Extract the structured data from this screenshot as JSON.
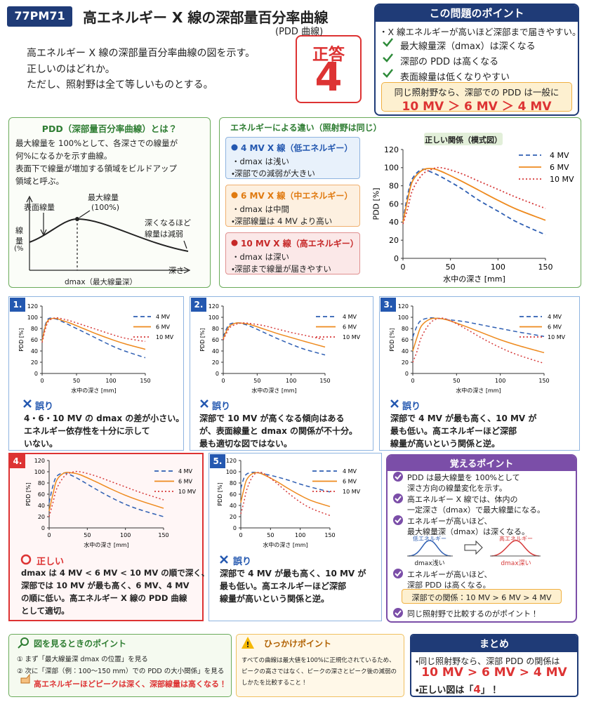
{
  "header": {
    "code": "77PM71",
    "title": "高エネルギー X 線の深部量百分率曲線",
    "subtitle": "(PDD 曲線)"
  },
  "question": [
    "高エネルギー X 線の深部量百分率曲線の図を示す。",
    "正しいのはどれか。",
    "ただし、照射野は全て等しいものとする。"
  ],
  "answer": {
    "label": "正答",
    "value": "4"
  },
  "point": {
    "title": "この問題のポイント",
    "lead": "・X 線エネルギーが高いほど深部まで届きやすい。",
    "items": [
      "最大線量深（dmax）は深くなる",
      "深部の PDD は高くなる",
      "表面線量は低くなりやすい"
    ],
    "note": "同じ照射野なら、深部での PDD は一般に",
    "relation": "10 MV ＞ 6 MV ＞ 4 MV"
  },
  "pdd": {
    "title": "PDD（深部量百分率曲線）とは？",
    "text": [
      "最大線量を 100%として、各深さでの線量が",
      "何%になるかを示す曲線。",
      "表面下で線量が増加する領域をビルドアップ",
      "領域と呼ぶ。"
    ],
    "diagram": {
      "surface": "表面線量",
      "max": "最大線量",
      "max_pct": "(100%)",
      "decay": [
        "深くなるほど",
        "線量は減弱"
      ],
      "ylabel": [
        "線",
        "量",
        "(%"
      ],
      "xlabel": "深さ",
      "dmax": "dmax（最大線量深）"
    }
  },
  "energy": {
    "title": "エネルギーによる違い（照射野は同じ）",
    "groups": [
      {
        "heading": "4 MV X 線（低エネルギー）",
        "items": [
          "・dmax は浅い",
          "・深部での減弱が大きい"
        ]
      },
      {
        "heading": "6 MV X 線（中エネルギー）",
        "items": [
          "・dmax は中間",
          "・深部線量は 4 MV より高い"
        ]
      },
      {
        "heading": "10 MV X 線（高エネルギー）",
        "items": [
          "・dmax は深い",
          "・深部まで線量が届きやすい"
        ]
      }
    ]
  },
  "main_chart": {
    "type": "line",
    "title": "正しい関係（模式図）",
    "xlabel": "水中の深さ [mm]",
    "ylabel": "PDD [%]",
    "x": [
      0,
      5,
      10,
      20,
      30,
      40,
      60,
      80,
      100,
      120,
      150
    ],
    "xlim": [
      0,
      150
    ],
    "ylim": [
      0,
      120
    ],
    "xticks": [
      0,
      50,
      100,
      150
    ],
    "yticks": [
      0,
      20,
      40,
      60,
      80,
      100,
      120
    ],
    "grid": false,
    "legend": "upper right",
    "series": [
      {
        "name": "4 MV",
        "color": "#2f5fb3",
        "style": "dashed",
        "values": [
          42,
          70,
          88,
          98,
          95,
          90,
          78,
          64,
          52,
          40,
          26
        ]
      },
      {
        "name": "6 MV",
        "color": "#ee8a1e",
        "style": "solid",
        "values": [
          40,
          65,
          85,
          97,
          99,
          96,
          86,
          75,
          64,
          54,
          42
        ]
      },
      {
        "name": "10 MV",
        "color": "#d63a3a",
        "style": "dotted",
        "values": [
          38,
          55,
          75,
          92,
          98,
          100,
          94,
          85,
          76,
          67,
          55
        ]
      }
    ]
  },
  "options": [
    {
      "number": "1.",
      "verdict": "誤り",
      "text": [
        "4・6・10 MV の dmax の差が小さい。",
        "エネルギー依存性を十分に示して",
        "いない。"
      ],
      "chart": {
        "type": "line",
        "xlabel": "水中の深さ [mm]",
        "ylabel": "PDD [%]",
        "x": [
          0,
          5,
          10,
          20,
          30,
          40,
          60,
          80,
          100,
          120,
          150
        ],
        "xlim": [
          0,
          150
        ],
        "ylim": [
          0,
          120
        ],
        "xticks": [
          0,
          50,
          100,
          150
        ],
        "yticks": [
          0,
          20,
          40,
          60,
          80,
          100,
          120
        ],
        "grid": false,
        "legend": "upper right",
        "series": [
          {
            "name": "4 MV",
            "color": "#2f5fb3",
            "style": "dashed",
            "values": [
              60,
              88,
              98,
              97,
              92,
              86,
              74,
              62,
              50,
              40,
              28
            ]
          },
          {
            "name": "6 MV",
            "color": "#ee8a1e",
            "style": "solid",
            "values": [
              58,
              85,
              96,
              98,
              94,
              90,
              80,
              70,
              61,
              53,
              43
            ]
          },
          {
            "name": "10 MV",
            "color": "#d63a3a",
            "style": "dotted",
            "values": [
              55,
              80,
              94,
              99,
              97,
              94,
              86,
              78,
              70,
              63,
              57
            ]
          }
        ]
      }
    },
    {
      "number": "2.",
      "verdict": "誤り",
      "text": [
        "深部で 10 MV が高くなる傾向はある",
        "が、表面線量と dmax の関係が不十分。",
        "最も適切な図ではない。"
      ],
      "chart": {
        "type": "line",
        "xlabel": "水中の深さ [mm]",
        "ylabel": "PDD [%]",
        "x": [
          0,
          5,
          10,
          20,
          30,
          40,
          60,
          80,
          100,
          120,
          150
        ],
        "xlim": [
          0,
          150
        ],
        "ylim": [
          0,
          120
        ],
        "xticks": [
          0,
          50,
          100,
          150
        ],
        "yticks": [
          0,
          20,
          40,
          60,
          80,
          100,
          120
        ],
        "grid": false,
        "legend": "upper right",
        "series": [
          {
            "name": "4 MV",
            "color": "#2f5fb3",
            "style": "dashed",
            "values": [
              65,
              80,
              88,
              90,
              88,
              84,
              73,
              62,
              52,
              43,
              33
            ]
          },
          {
            "name": "6 MV",
            "color": "#ee8a1e",
            "style": "solid",
            "values": [
              62,
              76,
              85,
              90,
              89,
              87,
              79,
              71,
              64,
              57,
              47
            ]
          },
          {
            "name": "10 MV",
            "color": "#d63a3a",
            "style": "dotted",
            "values": [
              60,
              72,
              82,
              88,
              90,
              89,
              85,
              79,
              73,
              68,
              60
            ]
          }
        ]
      }
    },
    {
      "number": "3.",
      "verdict": "誤り",
      "text": [
        "深部で 4 MV が最も高く、10 MV が",
        "最も低い。高エネルギーほど深部",
        "線量が高いという関係と逆。"
      ],
      "chart": {
        "type": "line",
        "xlabel": "水中の深さ [mm]",
        "ylabel": "PDD [%]",
        "x": [
          0,
          5,
          10,
          20,
          30,
          40,
          60,
          80,
          100,
          120,
          150
        ],
        "xlim": [
          0,
          150
        ],
        "ylim": [
          0,
          120
        ],
        "xticks": [
          0,
          50,
          100,
          150
        ],
        "yticks": [
          0,
          20,
          40,
          60,
          80,
          100,
          120
        ],
        "grid": false,
        "legend": "upper right",
        "series": [
          {
            "name": "4 MV",
            "color": "#2f5fb3",
            "style": "dashed",
            "values": [
              65,
              85,
              95,
              99,
              98,
              96,
              92,
              86,
              80,
              74,
              66
            ]
          },
          {
            "name": "6 MV",
            "color": "#ee8a1e",
            "style": "solid",
            "values": [
              40,
              65,
              85,
              97,
              98,
              95,
              84,
              72,
              60,
              50,
              37
            ]
          },
          {
            "name": "10 MV",
            "color": "#d63a3a",
            "style": "dotted",
            "values": [
              20,
              40,
              65,
              90,
              98,
              96,
              80,
              62,
              46,
              33,
              18
            ]
          }
        ]
      }
    },
    {
      "number": "4.",
      "verdict": "正しい",
      "text": [
        "dmax は 4 MV < 6 MV < 10 MV の順で深く、",
        "深部では 10 MV が最も高く、6 MV、4 MV",
        "の順に低い。高エネルギー X 線の PDD 曲線",
        "として適切。"
      ],
      "chart": {
        "type": "line",
        "xlabel": "水中の深さ [mm]",
        "ylabel": "PDD [%]",
        "x": [
          0,
          5,
          10,
          20,
          30,
          40,
          60,
          80,
          100,
          120,
          150
        ],
        "xlim": [
          0,
          150
        ],
        "ylim": [
          0,
          120
        ],
        "xticks": [
          0,
          50,
          100,
          150
        ],
        "yticks": [
          0,
          20,
          40,
          60,
          80,
          100,
          120
        ],
        "grid": false,
        "legend": "upper right",
        "series": [
          {
            "name": "4 MV",
            "color": "#2f5fb3",
            "style": "dashed",
            "values": [
              45,
              75,
              92,
              98,
              93,
              86,
              70,
              55,
              42,
              32,
              20
            ]
          },
          {
            "name": "6 MV",
            "color": "#ee8a1e",
            "style": "solid",
            "values": [
              30,
              60,
              85,
              98,
              98,
              95,
              83,
              70,
              58,
              48,
              35
            ]
          },
          {
            "name": "10 MV",
            "color": "#d63a3a",
            "style": "dotted",
            "values": [
              20,
              45,
              70,
              92,
              99,
              100,
              93,
              83,
              73,
              63,
              50
            ]
          }
        ]
      }
    },
    {
      "number": "5.",
      "verdict": "誤り",
      "text": [
        "深部で 4 MV が最も高く、10 MV が",
        "最も低い。高エネルギーほど深部",
        "線量が高いという関係と逆。"
      ],
      "chart": {
        "type": "line",
        "xlabel": "水中の深さ [mm]",
        "ylabel": "PDD [%]",
        "x": [
          0,
          5,
          10,
          20,
          30,
          40,
          60,
          80,
          100,
          120,
          150
        ],
        "xlim": [
          0,
          150
        ],
        "ylim": [
          0,
          120
        ],
        "xticks": [
          0,
          50,
          100,
          150
        ],
        "yticks": [
          0,
          20,
          40,
          60,
          80,
          100,
          120
        ],
        "grid": false,
        "legend": "upper right",
        "series": [
          {
            "name": "4 MV",
            "color": "#2f5fb3",
            "style": "dashed",
            "values": [
              70,
              88,
              96,
              99,
              98,
              96,
              91,
              85,
              78,
              72,
              64
            ]
          },
          {
            "name": "6 MV",
            "color": "#ee8a1e",
            "style": "solid",
            "values": [
              45,
              68,
              86,
              97,
              98,
              94,
              83,
              70,
              58,
              48,
              38
            ]
          },
          {
            "name": "10 MV",
            "color": "#d63a3a",
            "style": "dotted",
            "values": [
              25,
              45,
              68,
              92,
              99,
              96,
              80,
              62,
              46,
              34,
              22
            ]
          }
        ]
      }
    }
  ],
  "memory": {
    "title": "覚えるポイント",
    "items": [
      [
        "PDD は最大線量を 100%として",
        "深さ方向の線量変化を示す。"
      ],
      [
        "高エネルギー X 線では、体内の",
        "一定深さ（dmax）で最大線量になる。"
      ],
      [
        "エネルギーが高いほど、",
        "最大線量深（dmax）は深くなる。"
      ],
      [
        "エネルギーが高いほど、",
        "深部 PDD は高くなる。"
      ]
    ],
    "mini": {
      "low": "低エネルギー",
      "low_d": "dmax浅い",
      "high": "高エネルギー",
      "high_d": "dmax深い"
    },
    "relation": "深部での関係：10 MV > 6 MV > 4 MV",
    "last": "同じ照射野で比較するのがポイント！"
  },
  "figpoint": {
    "title": "図を見るときのポイント",
    "items": [
      "①  まず「最大線量深 dmax の位置」を見る",
      "②  次に「深部（例：100〜150 mm）での PDD の大小関係」を見る"
    ],
    "note": "高エネルギーほどピークは深く、深部線量は高くなる！"
  },
  "trap": {
    "title": "ひっかけポイント",
    "text": [
      "すべての曲線は最大値を100%に正規化されているため、",
      "ピークの高さではなく、ピークの深さとピーク後の減弱の",
      "しかたを比較すること！"
    ]
  },
  "summary": {
    "title": "まとめ",
    "lead": "・同じ照射野なら、深部 PDD の関係は",
    "relation": "10 MV > 6 MV > 4 MV",
    "answer_pre": "・正しい図は「",
    "answer": "4",
    "answer_post": "」！"
  }
}
